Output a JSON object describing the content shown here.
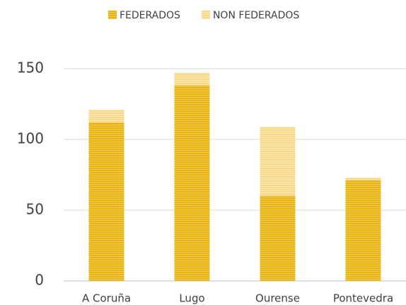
{
  "chart_data": {
    "type": "stacked_bar",
    "categories": [
      "A Coruña",
      "Lugo",
      "Ourense",
      "Pontevedra"
    ],
    "series": [
      {
        "name": "FEDERADOS",
        "color": "#e8b30c",
        "values": [
          112,
          138,
          60,
          71
        ]
      },
      {
        "name": "NON FEDERADOS",
        "color": "#fbd98c",
        "values": [
          9,
          9,
          49,
          2
        ]
      }
    ],
    "ylim": [
      0,
      150
    ],
    "yticks": [
      0,
      50,
      100,
      150
    ],
    "grid": true,
    "legend": "top"
  }
}
